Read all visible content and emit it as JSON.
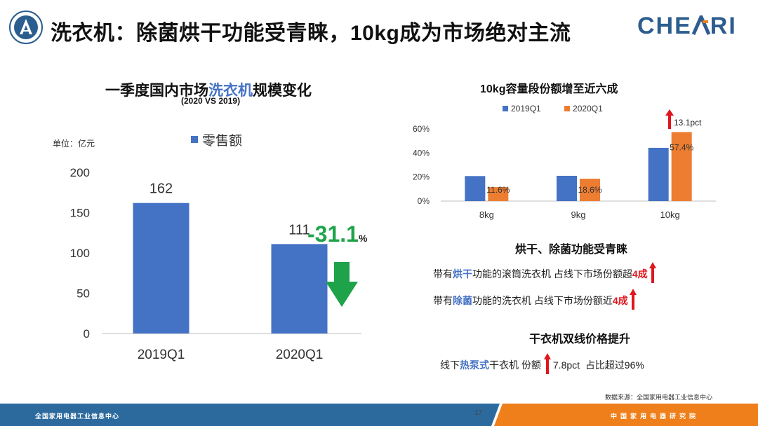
{
  "header": {
    "title": "洗衣机：除菌烘干功能受青睐，10kg成为市场绝对主流",
    "brand_pre": "CHE",
    "brand_post": "RI"
  },
  "left_chart": {
    "title_pre": "一季度国内市场",
    "title_hl": "洗衣机",
    "title_post": "规模变化",
    "subtitle": "(2020 VS 2019)",
    "unit": "单位：亿元",
    "change_value": "-31.1",
    "change_unit": "%"
  },
  "right_chart": {
    "title": "10kg容量段份额增至近六成",
    "pct_note": "13.1pct"
  },
  "section1": {
    "title": "烘干、除菌功能受青睐",
    "line1_pre": "带有",
    "line1_hl": "烘干",
    "line1_mid": "功能的滚筒洗衣机 占线下市场份额超",
    "line1_red": "4成",
    "line2_pre": "带有",
    "line2_hl": "除菌",
    "line2_mid": "功能的洗衣机 占线下市场份额近",
    "line2_red": "4成"
  },
  "section2": {
    "title": "干衣机双线价格提升",
    "line_pre": "线下",
    "line_hl": "热泵式",
    "line_mid": "干衣机 份额",
    "line_val": "7.8pct",
    "line_post": "占比超过96%"
  },
  "source": "数据来源：全国家用电器工业信息中心",
  "footer": {
    "left": "全国家用电器工业信息中心",
    "page": "17",
    "right": "中国家用电器研究院"
  },
  "colors": {
    "blue": "#4472c4",
    "orange": "#ed7d31",
    "green": "#1ea34a",
    "red": "#e0161c"
  },
  "chart_data": [
    {
      "type": "bar",
      "title": "一季度国内市场洗衣机规模变化",
      "subtitle": "(2020 VS 2019)",
      "ylabel": "单位：亿元",
      "categories": [
        "2019Q1",
        "2020Q1"
      ],
      "series": [
        {
          "name": "零售额",
          "values": [
            162,
            111
          ]
        }
      ],
      "data_labels": [
        "162",
        "111"
      ],
      "ylim": [
        0,
        200
      ],
      "yticks": [
        0,
        50,
        100,
        150,
        200
      ],
      "grid": false,
      "legend": "top"
    },
    {
      "type": "bar",
      "title": "10kg容量段份额增至近六成",
      "categories": [
        "8kg",
        "9kg",
        "10kg"
      ],
      "series": [
        {
          "name": "2019Q1",
          "values": [
            20.8,
            21.0,
            44.3
          ]
        },
        {
          "name": "2020Q1",
          "values": [
            11.6,
            18.6,
            57.4
          ]
        }
      ],
      "data_labels": [
        "11.6%",
        "18.6%",
        "57.4%"
      ],
      "ylim": [
        0,
        60
      ],
      "yticks": [
        "0%",
        "20%",
        "40%",
        "60%"
      ],
      "grid": false,
      "legend": "top"
    }
  ]
}
